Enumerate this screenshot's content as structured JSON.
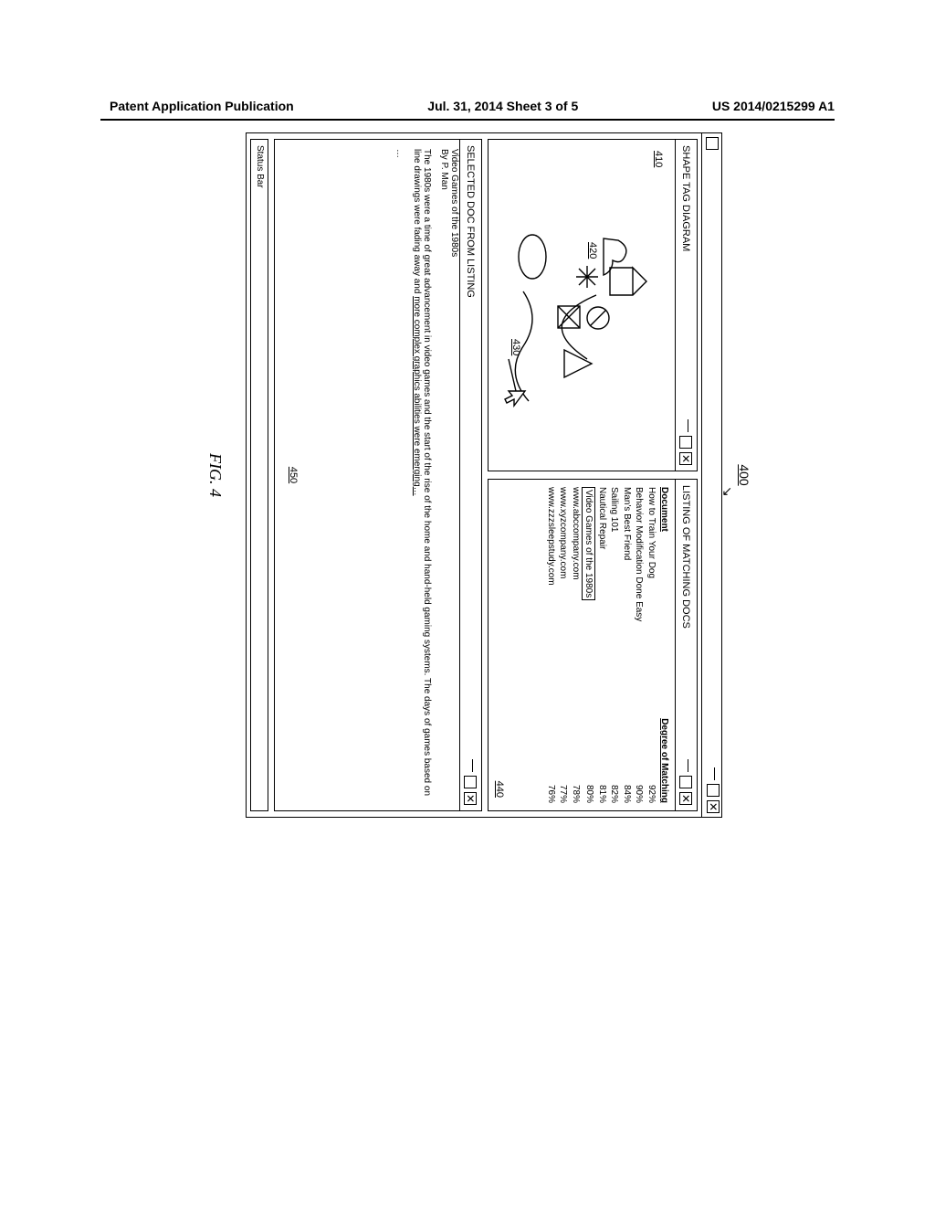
{
  "header": {
    "left": "Patent Application Publication",
    "center": "Jul. 31, 2014  Sheet 3 of 5",
    "right": "US 2014/0215299 A1"
  },
  "figure": {
    "ref_main": "400",
    "caption": "FIG. 4",
    "refs": {
      "r410": "410",
      "r420": "420",
      "r430": "430",
      "r440": "440",
      "r450": "450"
    }
  },
  "panel_shape": {
    "title": "SHAPE TAG DIAGRAM"
  },
  "panel_list": {
    "title": "LISTING OF MATCHING DOCS",
    "col_doc": "Document",
    "col_deg": "Degree of Matching",
    "rows": [
      {
        "doc": "How to Train Your Dog",
        "deg": "92%"
      },
      {
        "doc": "Behavior Modification Done Easy",
        "deg": "90%"
      },
      {
        "doc": "Man's Best Friend",
        "deg": "84%"
      },
      {
        "doc": "Sailing 101",
        "deg": "82%"
      },
      {
        "doc": "Nautical Repair",
        "deg": "81%"
      },
      {
        "doc": "Video Games of the 1980s",
        "deg": "80%",
        "selected": true
      },
      {
        "doc": "www.abccompany.com",
        "deg": "78%"
      },
      {
        "doc": "www.xyzcompany.com",
        "deg": "77%"
      },
      {
        "doc": "www.zzzsleepstudy.com",
        "deg": "76%"
      }
    ]
  },
  "panel_doc": {
    "title": "SELECTED DOC FROM LISTING",
    "doc_title": "Video Games of the 1980s",
    "byline": "By P. Man",
    "para_pre": "The 1980s were a time of great advancement in video games and the start of the rise of the home and hand-held gaming systems.  The days of games based on line drawings were fading away and ",
    "para_link": "more complex graphics abilities were emerging…",
    "ellipsis": "…"
  },
  "statusbar": {
    "label": "Status Bar"
  }
}
